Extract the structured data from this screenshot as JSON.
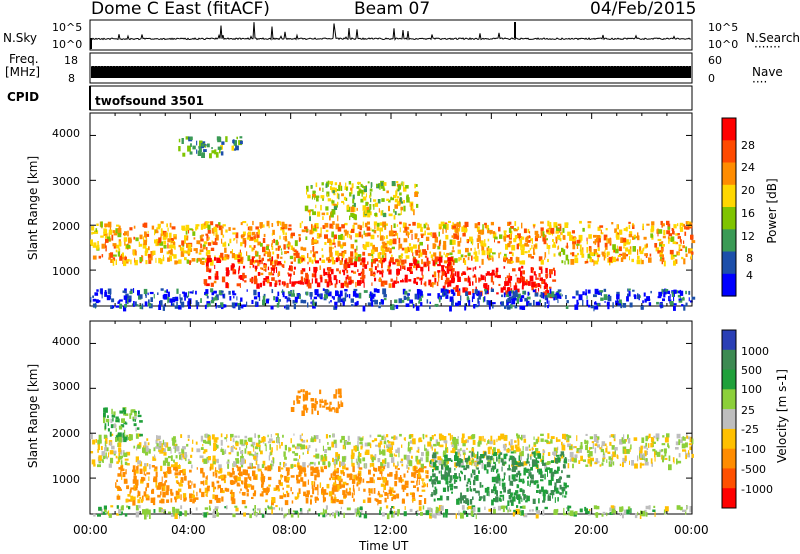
{
  "header": {
    "station": "Dome C East (fitACF)",
    "beam": "Beam 07",
    "date": "04/Feb/2015"
  },
  "param_strips": {
    "nsky_label": "N.Sky",
    "nsky_ticks": [
      "10^5",
      "10^0"
    ],
    "nsearch_label": "N.Search",
    "nsearch_dots": "·······",
    "nsearch_ticks": [
      "10^5",
      "10^0"
    ],
    "freq_label": "Freq.",
    "freq_unit": "[MHz]",
    "freq_ticks": [
      "18",
      "8"
    ],
    "nave_label": "Nave",
    "nave_dots": "····",
    "nave_ticks": [
      "60",
      "0"
    ],
    "cpid_label": "CPID",
    "cpid_value": "twofsound 3501"
  },
  "panels": {
    "ylabel": "Slant Range [km]",
    "yticks": [
      "4000",
      "3000",
      "2000",
      "1000"
    ],
    "xlabel": "Time UT",
    "xticks": [
      "00:00",
      "04:00",
      "08:00",
      "12:00",
      "16:00",
      "20:00",
      "00:00"
    ]
  },
  "power_scale": {
    "label": "Power [dB]",
    "ticks": [
      "28",
      "24",
      "20",
      "16",
      "12",
      "8",
      "4"
    ],
    "colors": [
      "#ff0000",
      "#ff4a00",
      "#ff8c00",
      "#ffd700",
      "#7fc400",
      "#3a9a55",
      "#1c4faa",
      "#0000ff"
    ]
  },
  "velocity_scale": {
    "label": "Velocity [m s-1]",
    "ticks": [
      "1000",
      "500",
      "100",
      "25",
      "-25",
      "-100",
      "-500",
      "-1000"
    ],
    "colors": [
      "#2a3fb5",
      "#3d8a52",
      "#1fa03a",
      "#8ccf3a",
      "#bebebe",
      "#ffc000",
      "#ff8c00",
      "#ff5000",
      "#ff0000"
    ]
  },
  "chart_data": {
    "type": "heatmap",
    "xlabel": "Time UT",
    "ylabel": "Slant Range [km]",
    "xlim_hours": [
      0,
      24
    ],
    "ylim_km": [
      200,
      4500
    ],
    "x_ticks": [
      "00:00",
      "04:00",
      "08:00",
      "12:00",
      "16:00",
      "20:00",
      "00:00"
    ],
    "y_ticks": [
      1000,
      2000,
      3000,
      4000
    ],
    "panels": [
      {
        "name": "power",
        "colorbar": "Power [dB]",
        "colorbar_ticks": [
          4,
          8,
          12,
          16,
          20,
          24,
          28
        ],
        "regions": [
          {
            "t": [
              0,
              24
            ],
            "r": [
              1200,
              2100
            ],
            "value_db": 20
          },
          {
            "t": [
              4.5,
              14.5
            ],
            "r": [
              700,
              1300
            ],
            "value_db": 27
          },
          {
            "t": [
              14,
              18.5
            ],
            "r": [
              500,
              1100
            ],
            "value_db": 28
          },
          {
            "t": [
              8.5,
              13
            ],
            "r": [
              2200,
              3000
            ],
            "value_db": 16
          },
          {
            "t": [
              3.5,
              6
            ],
            "r": [
              3600,
              4000
            ],
            "value_db": 12
          },
          {
            "t": [
              0,
              24
            ],
            "r": [
              200,
              600
            ],
            "value_db": 6
          }
        ]
      },
      {
        "name": "velocity",
        "colorbar": "Velocity [m s-1]",
        "colorbar_ticks": [
          1000,
          500,
          100,
          25,
          -25,
          -100,
          -500,
          -1000
        ],
        "regions": [
          {
            "t": [
              0,
              24
            ],
            "r": [
              1300,
              2000
            ],
            "value_ms": 0
          },
          {
            "t": [
              1,
              13.5
            ],
            "r": [
              500,
              1300
            ],
            "value_ms": -150
          },
          {
            "t": [
              13.5,
              19
            ],
            "r": [
              500,
              1600
            ],
            "value_ms": 300
          },
          {
            "t": [
              8,
              10
            ],
            "r": [
              2500,
              3000
            ],
            "value_ms": -200
          },
          {
            "t": [
              0.5,
              2
            ],
            "r": [
              1900,
              2600
            ],
            "value_ms": 100
          },
          {
            "t": [
              0,
              24
            ],
            "r": [
              200,
              400
            ],
            "value_ms": 50
          }
        ]
      }
    ]
  }
}
